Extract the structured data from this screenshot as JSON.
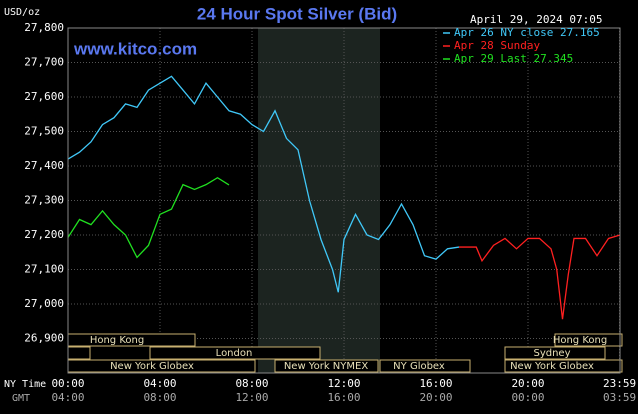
{
  "chart_data": {
    "type": "line",
    "title": "24 Hour Spot Silver (Bid)",
    "y_unit": "USD/oz",
    "website": "www.kitco.com",
    "timestamp": "April 29, 2024 07:05",
    "x_label": "NY Time",
    "x2_label": "GMT",
    "xlim": [
      0,
      24
    ],
    "xticks": [
      {
        "value": 0,
        "label": "00:00"
      },
      {
        "value": 4,
        "label": "04:00"
      },
      {
        "value": 8,
        "label": "08:00"
      },
      {
        "value": 12,
        "label": "12:00"
      },
      {
        "value": 16,
        "label": "16:00"
      },
      {
        "value": 20,
        "label": "20:00"
      },
      {
        "value": 23.983,
        "label": "23:59"
      }
    ],
    "xticks_gmt": [
      "04:00",
      "08:00",
      "12:00",
      "16:00",
      "20:00",
      "00:00",
      "03:59"
    ],
    "ylim": [
      26800,
      27800
    ],
    "yticks": [
      {
        "value": 26900,
        "label": "26,900"
      },
      {
        "value": 27000,
        "label": "27,000"
      },
      {
        "value": 27100,
        "label": "27,100"
      },
      {
        "value": 27200,
        "label": "27,200"
      },
      {
        "value": 27300,
        "label": "27,300"
      },
      {
        "value": 27400,
        "label": "27,400"
      },
      {
        "value": 27500,
        "label": "27,500"
      },
      {
        "value": 27600,
        "label": "27,600"
      },
      {
        "value": 27700,
        "label": "27,700"
      },
      {
        "value": 27800,
        "label": "27,800"
      }
    ],
    "grid": true,
    "legend": "top-right",
    "series": [
      {
        "name": "Apr 26 NY close 27.165",
        "color": "#40c8f8",
        "x": [
          0,
          0.5,
          1,
          1.5,
          2,
          2.5,
          3,
          3.5,
          4,
          4.5,
          5,
          5.5,
          6,
          6.5,
          7,
          7.5,
          8,
          8.5,
          9,
          9.5,
          10,
          10.5,
          11,
          11.5,
          11.75,
          12,
          12.5,
          13,
          13.5,
          14,
          14.5,
          15,
          15.5,
          16,
          16.5,
          17
        ],
        "values": [
          27420,
          27440,
          27470,
          27520,
          27540,
          27580,
          27570,
          27620,
          27640,
          27660,
          27620,
          27580,
          27640,
          27600,
          27560,
          27550,
          27520,
          27500,
          27560,
          27480,
          27447,
          27300,
          27187,
          27100,
          27034,
          27187,
          27260,
          27200,
          27187,
          27230,
          27290,
          27230,
          27140,
          27130,
          27160,
          27165
        ]
      },
      {
        "name": "Apr 28 Sunday",
        "color": "#ff2020",
        "x": [
          17,
          17.75,
          18,
          18.5,
          19,
          19.5,
          20,
          20.5,
          21,
          21.25,
          21.5,
          21.75,
          22,
          22.5,
          23,
          23.5,
          24
        ],
        "values": [
          27165,
          27165,
          27125,
          27170,
          27190,
          27160,
          27190,
          27190,
          27160,
          27100,
          26956,
          27085,
          27190,
          27190,
          27140,
          27190,
          27200
        ]
      },
      {
        "name": "Apr 29 Last 27.345",
        "color": "#20e020",
        "x": [
          0,
          0.5,
          1,
          1.5,
          2,
          2.5,
          3,
          3.5,
          4,
          4.5,
          5,
          5.5,
          6,
          6.5,
          7
        ],
        "values": [
          27193,
          27245,
          27230,
          27270,
          27230,
          27200,
          27135,
          27170,
          27260,
          27275,
          27346,
          27332,
          27346,
          27366,
          27345
        ]
      }
    ]
  },
  "sessions": [
    "Hong Kong",
    "Hong Kong",
    "London",
    "Sydney",
    "New York Globex",
    "New York NYMEX",
    "NY Globex",
    "New York Globex"
  ]
}
